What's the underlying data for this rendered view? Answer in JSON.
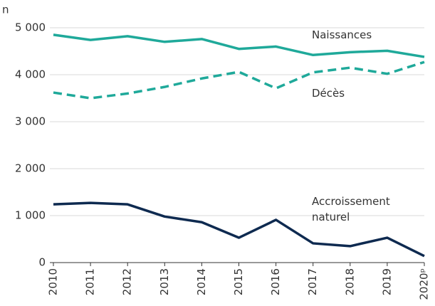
{
  "chart_data": {
    "type": "line",
    "y_label": "n",
    "categories": [
      "2010",
      "2011",
      "2012",
      "2013",
      "2014",
      "2015",
      "2016",
      "2017",
      "2018",
      "2019",
      "2020ᵖ"
    ],
    "series": [
      {
        "name": "Naissances",
        "color": "#1fa99a",
        "dash": false,
        "values": [
          4850,
          4740,
          4820,
          4700,
          4760,
          4550,
          4600,
          4420,
          4480,
          4510,
          4380
        ]
      },
      {
        "name": "Décès",
        "color": "#1fa99a",
        "dash": true,
        "values": [
          3620,
          3500,
          3600,
          3740,
          3920,
          4060,
          3710,
          4050,
          4150,
          4020,
          4270
        ]
      },
      {
        "name": "Accroissement naturel",
        "color": "#0e2a50",
        "dash": false,
        "values": [
          1240,
          1270,
          1240,
          980,
          860,
          530,
          910,
          410,
          350,
          530,
          140
        ]
      }
    ],
    "ylim": [
      0,
      5000
    ],
    "yticks": [
      0,
      {
        "value": 1000,
        "label": "1 000"
      },
      {
        "value": 2000,
        "label": "2 000"
      },
      {
        "value": 3000,
        "label": "3 000"
      },
      {
        "value": 4000,
        "label": "4 000"
      },
      {
        "value": 5000,
        "label": "5 000"
      }
    ],
    "grid": true
  }
}
